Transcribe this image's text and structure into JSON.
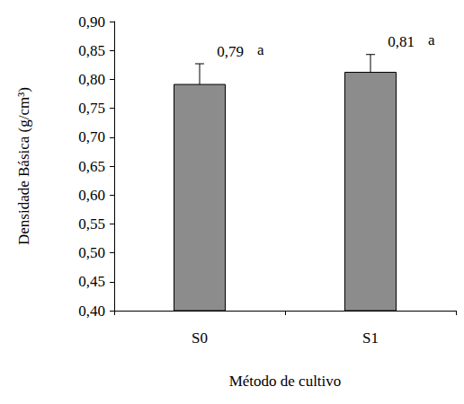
{
  "chart_data": {
    "type": "bar",
    "categories": [
      "S0",
      "S1"
    ],
    "values": [
      0.792,
      0.813
    ],
    "value_labels": [
      "0,79",
      "0,81"
    ],
    "errors": [
      0.035,
      0.03
    ],
    "letters": [
      "a",
      "a"
    ],
    "color": "#8c8c8c",
    "xlabel": "Método de cultivo",
    "ylabel": "Densidade Básica (g/cm³)",
    "ylim": [
      0.4,
      0.9
    ],
    "yticks": [
      {
        "value": 0.4,
        "label": "0,40"
      },
      {
        "value": 0.45,
        "label": "0,45"
      },
      {
        "value": 0.5,
        "label": "0,50"
      },
      {
        "value": 0.55,
        "label": "0,55"
      },
      {
        "value": 0.6,
        "label": "0,60"
      },
      {
        "value": 0.65,
        "label": "0,65"
      },
      {
        "value": 0.7,
        "label": "0,70"
      },
      {
        "value": 0.75,
        "label": "0,75"
      },
      {
        "value": 0.8,
        "label": "0,80"
      },
      {
        "value": 0.85,
        "label": "0,85"
      },
      {
        "value": 0.9,
        "label": "0,90"
      }
    ],
    "grid": false,
    "data_labels": true
  }
}
